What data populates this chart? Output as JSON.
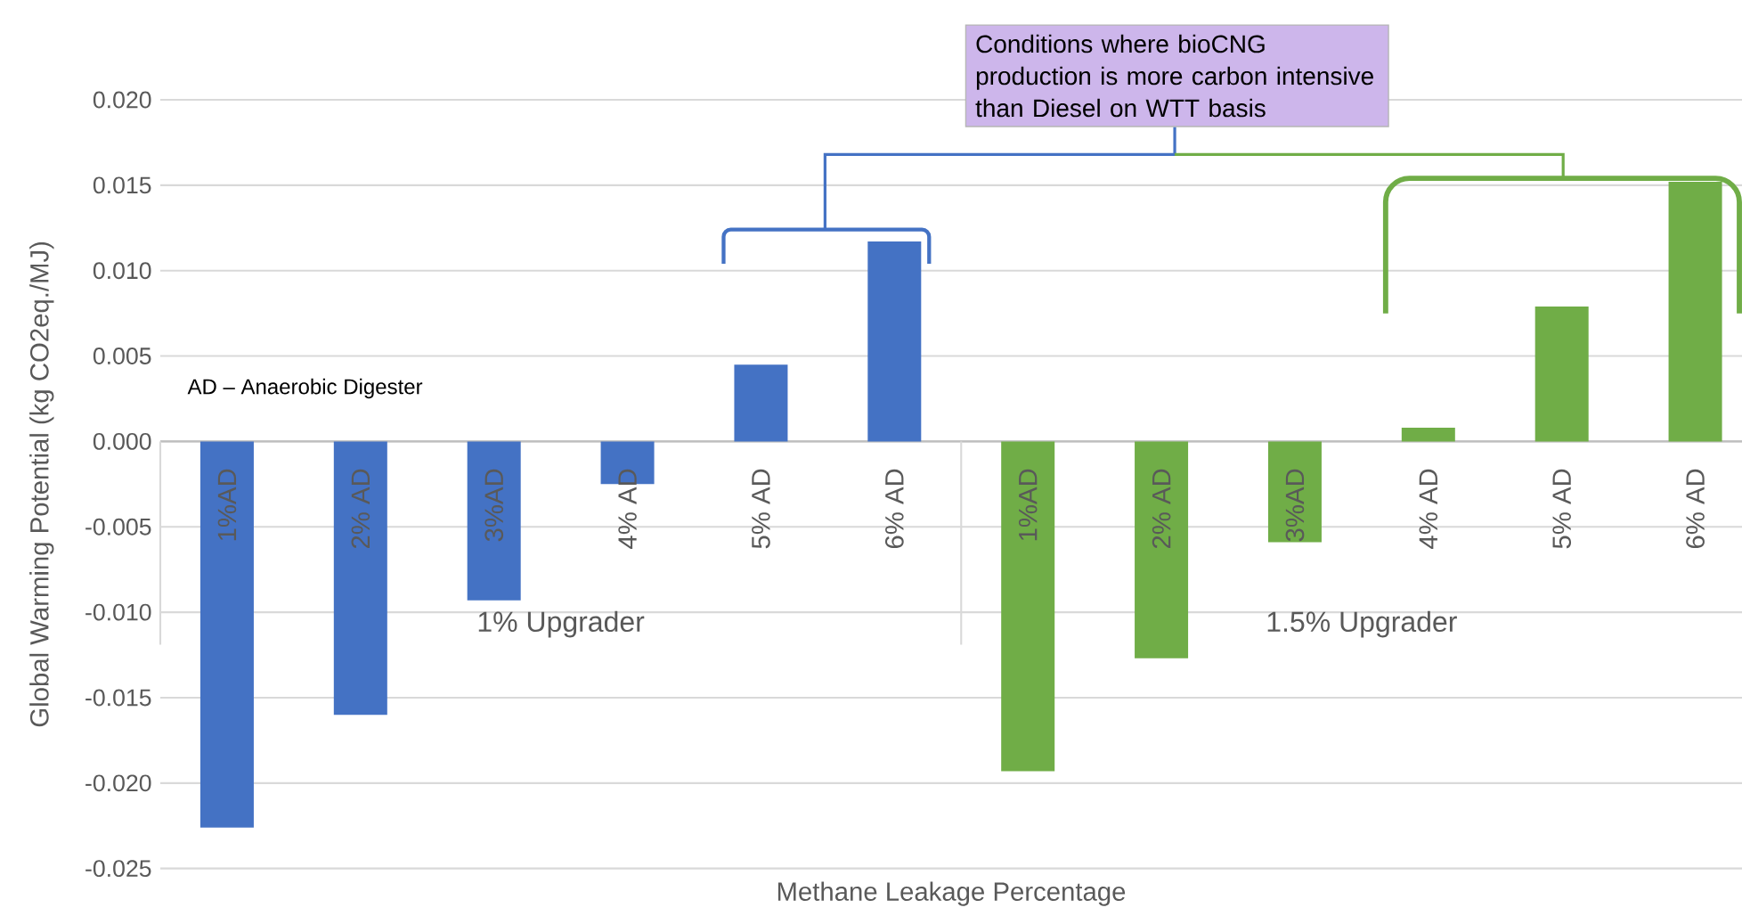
{
  "chart_data": {
    "type": "bar",
    "xlabel": "Methane Leakage Percentage",
    "ylabel": "Global Warming Potential (kg CO2eq./MJ)",
    "categories": [
      "1%AD",
      "2% AD",
      "3%AD",
      "4% AD",
      "5% AD",
      "6% AD",
      "1%AD",
      "2% AD",
      "3%AD",
      "4% AD",
      "5% AD",
      "6% AD"
    ],
    "values": [
      -0.0226,
      -0.016,
      -0.0093,
      -0.0025,
      0.0045,
      0.0117,
      -0.0193,
      -0.0127,
      -0.0059,
      0.0008,
      0.0079,
      0.0152
    ],
    "colors": [
      "#4472c4",
      "#4472c4",
      "#4472c4",
      "#4472c4",
      "#4472c4",
      "#4472c4",
      "#70ad47",
      "#70ad47",
      "#70ad47",
      "#70ad47",
      "#70ad47",
      "#70ad47"
    ],
    "ylim": [
      -0.025,
      0.02
    ],
    "yticks": [
      {
        "value": -0.025,
        "label": "-0.025"
      },
      {
        "value": -0.02,
        "label": "-0.020"
      },
      {
        "value": -0.015,
        "label": "-0.015"
      },
      {
        "value": -0.01,
        "label": "-0.010"
      },
      {
        "value": -0.005,
        "label": "-0.005"
      },
      {
        "value": 0,
        "label": "0.000"
      },
      {
        "value": 0.005,
        "label": "0.005"
      },
      {
        "value": 0.01,
        "label": "0.010"
      },
      {
        "value": 0.015,
        "label": "0.015"
      },
      {
        "value": 0.02,
        "label": "0.020"
      }
    ],
    "grid": "y",
    "annotations": [
      "AD – Anaerobic Digester",
      "Conditions where bioCNG production is more carbon intensive than Diesel on WTT basis",
      "1% Upgrader",
      "1.5% Upgrader"
    ]
  }
}
